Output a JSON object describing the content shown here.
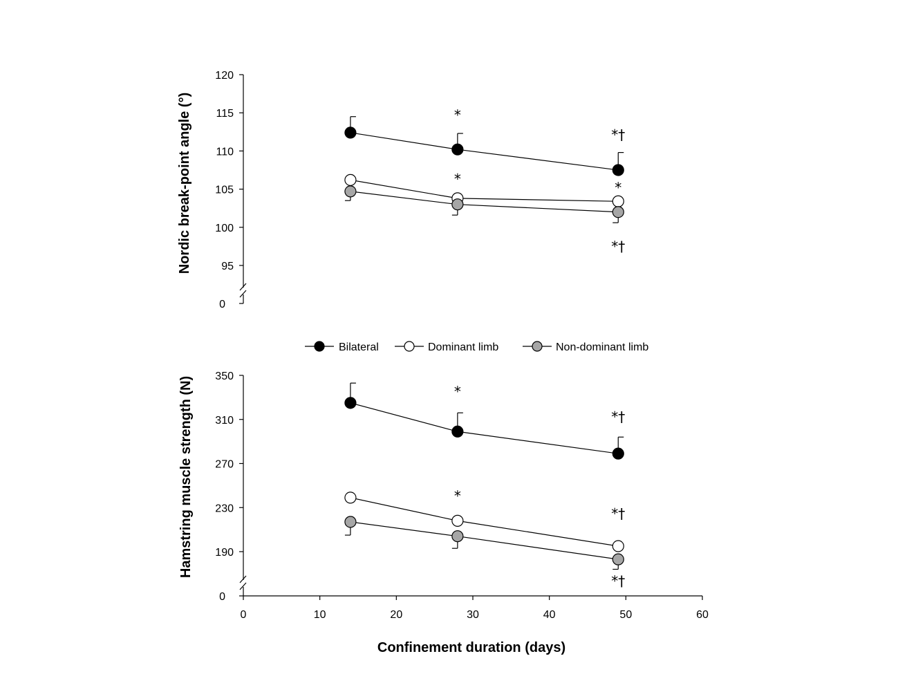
{
  "colors": {
    "Bilateral": "#000000",
    "Dominant limb": "#ffffff",
    "Non-dominant limb": "#a6a6a6"
  },
  "legend": [
    "Bilateral",
    "Dominant limb",
    "Non-dominant limb"
  ],
  "chart_data": [
    {
      "type": "line",
      "ylabel": "Nordic break-point angle (°)",
      "yticks": [
        "120",
        "115",
        "110",
        "105",
        "100",
        "95"
      ],
      "y_break_label": "0",
      "ylim": [
        95,
        120
      ],
      "x": [
        14,
        28,
        49
      ],
      "series": [
        {
          "name": "Bilateral",
          "values": [
            112.4,
            110.2,
            107.5
          ],
          "err_up": [
            2.1,
            2.1,
            2.3
          ],
          "err_dir": "up"
        },
        {
          "name": "Dominant limb",
          "values": [
            106.2,
            103.8,
            103.4
          ],
          "err_up": [
            0.0,
            0.0,
            0.0
          ],
          "err_dir": "none"
        },
        {
          "name": "Non-dominant limb",
          "values": [
            104.7,
            103.0,
            102.0
          ],
          "err_down": [
            1.2,
            1.4,
            1.4
          ],
          "err_dir": "down"
        }
      ],
      "annotations": [
        {
          "text": "*",
          "x": 28,
          "y": 114.8
        },
        {
          "text": "*†",
          "x": 49,
          "y": 112.2
        },
        {
          "text": "*",
          "x": 28,
          "y": 106.4
        },
        {
          "text": "*",
          "x": 49,
          "y": 105.3
        },
        {
          "text": "*†",
          "x": 49,
          "y": 97.6
        }
      ]
    },
    {
      "type": "line",
      "ylabel": "Hamstring muscle strength (N)",
      "yticks": [
        "350",
        "310",
        "270",
        "230",
        "190"
      ],
      "y_break_label": "0",
      "ylim": [
        190,
        350
      ],
      "x": [
        14,
        28,
        49
      ],
      "series": [
        {
          "name": "Bilateral",
          "values": [
            325,
            299,
            279
          ],
          "err_up": [
            18,
            17,
            15
          ],
          "err_dir": "up"
        },
        {
          "name": "Dominant limb",
          "values": [
            239,
            218,
            195
          ],
          "err_up": [
            0,
            0,
            0
          ],
          "err_dir": "none"
        },
        {
          "name": "Non-dominant limb",
          "values": [
            217,
            204,
            183
          ],
          "err_down": [
            12,
            11,
            9
          ],
          "err_dir": "down"
        }
      ],
      "annotations": [
        {
          "text": "*",
          "x": 28,
          "y": 336
        },
        {
          "text": "*†",
          "x": 49,
          "y": 313
        },
        {
          "text": "*",
          "x": 28,
          "y": 241
        },
        {
          "text": "*†",
          "x": 49,
          "y": 225
        },
        {
          "text": "*†",
          "x": 49,
          "y": 164
        }
      ]
    }
  ],
  "x_axis": {
    "title": "Confinement duration (days)",
    "ticks": [
      "0",
      "10",
      "20",
      "30",
      "40",
      "50",
      "60"
    ],
    "xlim": [
      0,
      60
    ]
  }
}
